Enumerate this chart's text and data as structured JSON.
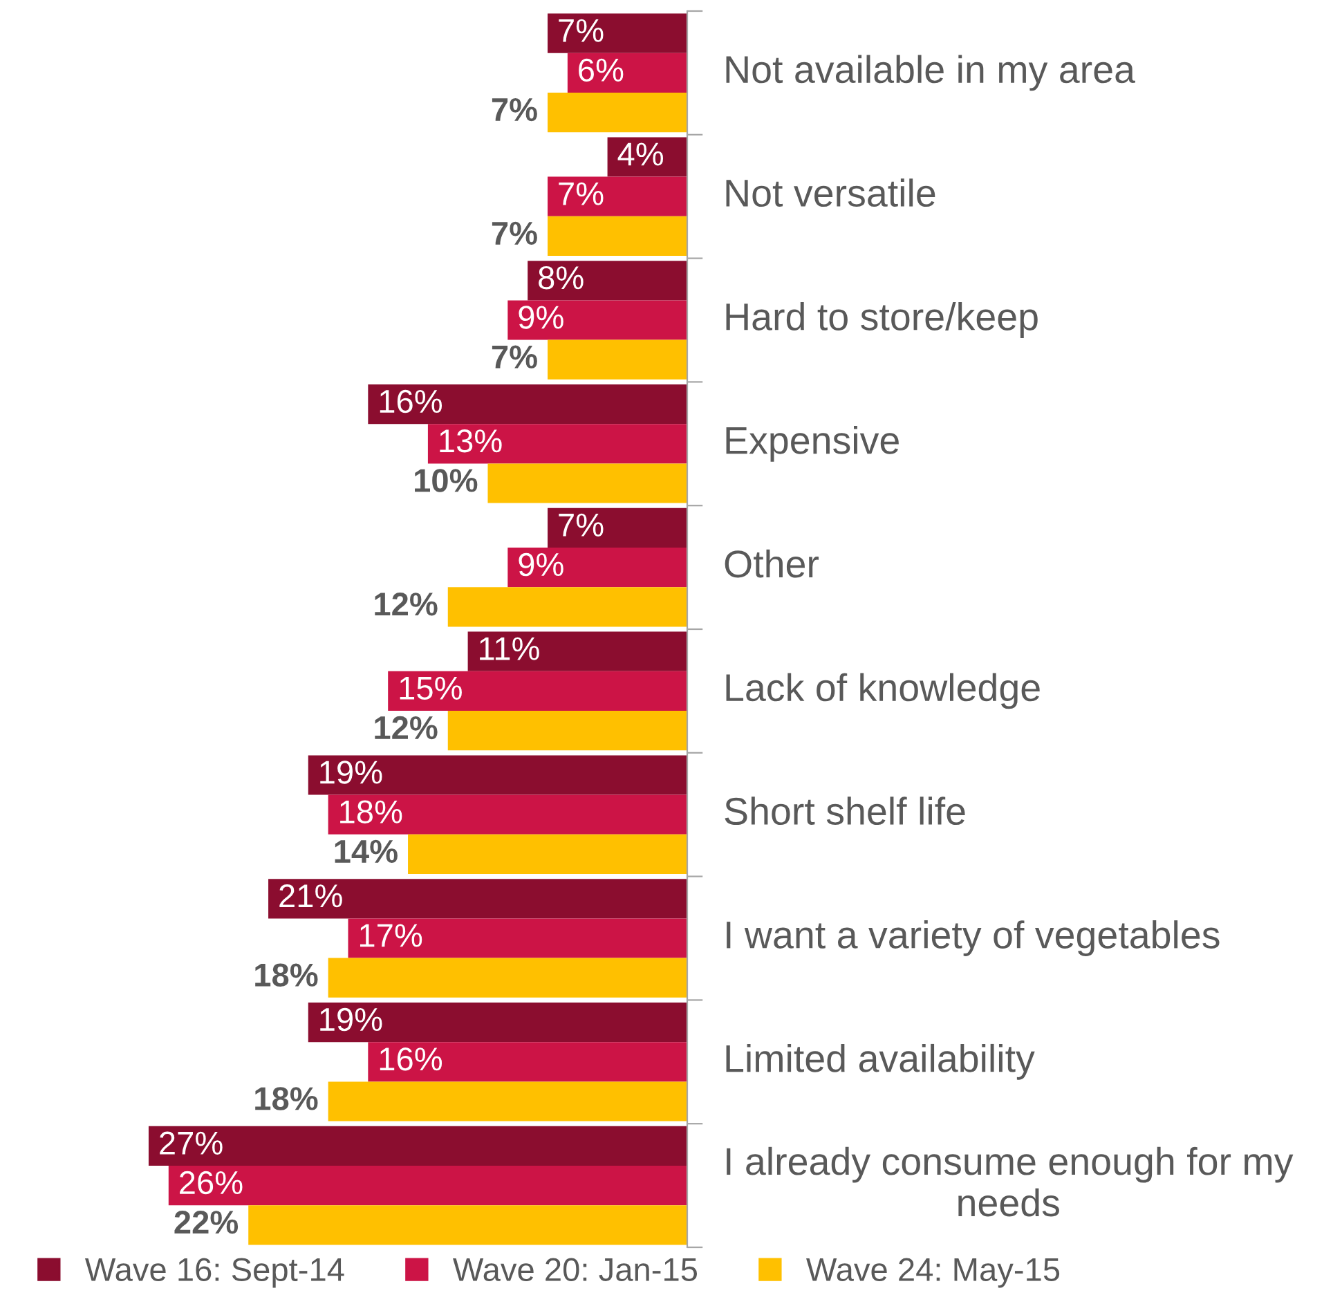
{
  "chart_data": {
    "type": "bar",
    "orientation": "horizontal",
    "categories": [
      "Not available in my area",
      "Not versatile",
      "Hard to store/keep",
      "Expensive",
      "Other",
      "Lack of knowledge",
      "Short shelf life",
      "I want a variety of vegetables",
      "Limited availability",
      "I already consume enough for my needs"
    ],
    "series": [
      {
        "name": "Wave 16: Sept-14",
        "color": "#8b0d2f",
        "values": [
          7,
          4,
          8,
          16,
          7,
          11,
          19,
          21,
          19,
          27
        ],
        "value_labels": [
          "7%",
          "4%",
          "8%",
          "16%",
          "7%",
          "11%",
          "19%",
          "21%",
          "19%",
          "27%"
        ]
      },
      {
        "name": "Wave 20: Jan-15",
        "color": "#cc1446",
        "values": [
          6,
          7,
          9,
          13,
          9,
          15,
          18,
          17,
          16,
          26
        ],
        "value_labels": [
          "6%",
          "7%",
          "9%",
          "13%",
          "9%",
          "15%",
          "18%",
          "17%",
          "16%",
          "26%"
        ]
      },
      {
        "name": "Wave 24: May-15",
        "color": "#ffc000",
        "values": [
          7,
          7,
          7,
          10,
          12,
          12,
          14,
          18,
          18,
          22
        ],
        "value_labels": [
          "7%",
          "7%",
          "7%",
          "10%",
          "12%",
          "12%",
          "14%",
          "18%",
          "18%",
          "22%"
        ]
      }
    ],
    "legend": "bottom",
    "grid": false
  }
}
